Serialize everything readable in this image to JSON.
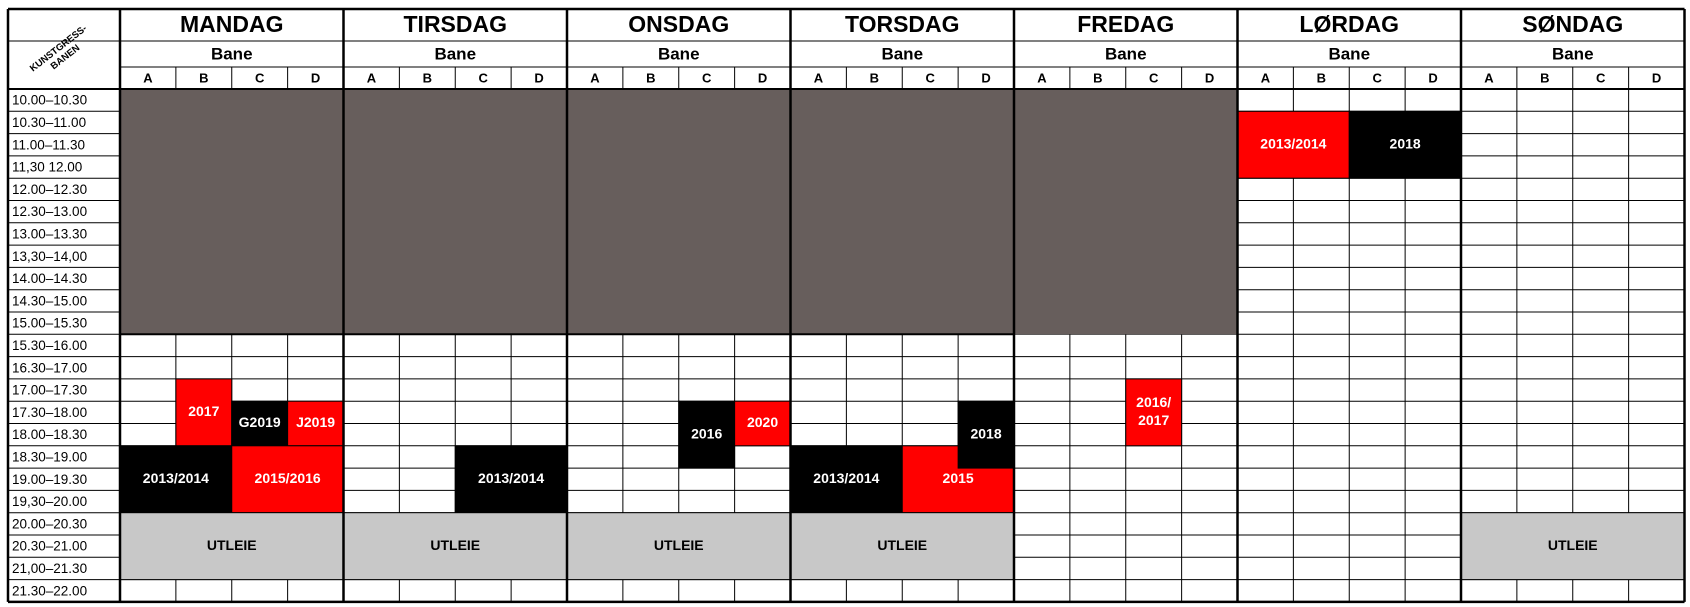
{
  "corner": [
    "KUNSTGRESS-",
    "BANEN"
  ],
  "court_header": "Bane",
  "courts": [
    "A",
    "B",
    "C",
    "D"
  ],
  "days": [
    "MANDAG",
    "TIRSDAG",
    "ONSDAG",
    "TORSDAG",
    "FREDAG",
    "LØRDAG",
    "SØNDAG"
  ],
  "time_slots": [
    "10.00–10.30",
    "10.30–11.00",
    "11.00–11.30",
    "11,30 12.00",
    "12.00–12.30",
    "12.30–13.00",
    "13.00–13.30",
    "13,30–14,00",
    "14.00–14.30",
    "14.30–15.00",
    "15.00–15.30",
    "15.30–16.00",
    "16.30–17.00",
    "17.00–17.30",
    "17.30–18.00",
    "18.00–18.30",
    "18.30–19.00",
    "19.00–19.30",
    "19,30–20.00",
    "20.00–20.30",
    "20.30–21.00",
    "21,00–21.30",
    "21.30–22.00"
  ],
  "bookings": [
    {
      "day": 0,
      "courts": [
        1,
        1
      ],
      "slots": [
        13,
        15
      ],
      "color": "#ff0000",
      "lines": [
        "2017"
      ]
    },
    {
      "day": 0,
      "courts": [
        2,
        2
      ],
      "slots": [
        14,
        15
      ],
      "color": "#000000",
      "lines": [
        "G2019"
      ]
    },
    {
      "day": 0,
      "courts": [
        3,
        3
      ],
      "slots": [
        14,
        15
      ],
      "color": "#ff0000",
      "lines": [
        "J2019"
      ]
    },
    {
      "day": 0,
      "courts": [
        0,
        1
      ],
      "slots": [
        16,
        18
      ],
      "color": "#000000",
      "lines": [
        "2013/2014"
      ]
    },
    {
      "day": 0,
      "courts": [
        2,
        3
      ],
      "slots": [
        16,
        18
      ],
      "color": "#ff0000",
      "lines": [
        "2015/2016"
      ]
    },
    {
      "day": 0,
      "courts": [
        0,
        3
      ],
      "slots": [
        19,
        21
      ],
      "color": "#c8c8c8",
      "lines": [
        "UTLEIE"
      ]
    },
    {
      "day": 1,
      "courts": [
        2,
        3
      ],
      "slots": [
        16,
        18
      ],
      "color": "#000000",
      "lines": [
        "2013/2014"
      ]
    },
    {
      "day": 1,
      "courts": [
        0,
        3
      ],
      "slots": [
        19,
        21
      ],
      "color": "#c8c8c8",
      "lines": [
        "UTLEIE"
      ]
    },
    {
      "day": 2,
      "courts": [
        2,
        2
      ],
      "slots": [
        14,
        16
      ],
      "color": "#000000",
      "lines": [
        "2016"
      ]
    },
    {
      "day": 2,
      "courts": [
        3,
        3
      ],
      "slots": [
        14,
        15
      ],
      "color": "#ff0000",
      "lines": [
        "2020"
      ]
    },
    {
      "day": 2,
      "courts": [
        0,
        3
      ],
      "slots": [
        19,
        21
      ],
      "color": "#c8c8c8",
      "lines": [
        "UTLEIE"
      ]
    },
    {
      "day": 3,
      "courts": [
        0,
        1
      ],
      "slots": [
        16,
        18
      ],
      "color": "#000000",
      "lines": [
        "2013/2014"
      ]
    },
    {
      "day": 3,
      "courts": [
        2,
        3
      ],
      "slots": [
        16,
        18
      ],
      "color": "#ff0000",
      "lines": [
        "2015"
      ]
    },
    {
      "day": 3,
      "courts": [
        3,
        3
      ],
      "slots": [
        14,
        16
      ],
      "color": "#000000",
      "lines": [
        "2018"
      ]
    },
    {
      "day": 3,
      "courts": [
        0,
        3
      ],
      "slots": [
        19,
        21
      ],
      "color": "#c8c8c8",
      "lines": [
        "UTLEIE"
      ]
    },
    {
      "day": 4,
      "courts": [
        2,
        2
      ],
      "slots": [
        13,
        15
      ],
      "color": "#ff0000",
      "lines": [
        "2016/",
        "2017"
      ]
    },
    {
      "day": 5,
      "courts": [
        0,
        1
      ],
      "slots": [
        1,
        3
      ],
      "color": "#ff0000",
      "lines": [
        "2013/2014"
      ]
    },
    {
      "day": 5,
      "courts": [
        2,
        3
      ],
      "slots": [
        1,
        3
      ],
      "color": "#000000",
      "lines": [
        "2018"
      ]
    },
    {
      "day": 6,
      "courts": [
        0,
        3
      ],
      "slots": [
        19,
        21
      ],
      "color": "#c8c8c8",
      "lines": [
        "UTLEIE"
      ]
    }
  ]
}
